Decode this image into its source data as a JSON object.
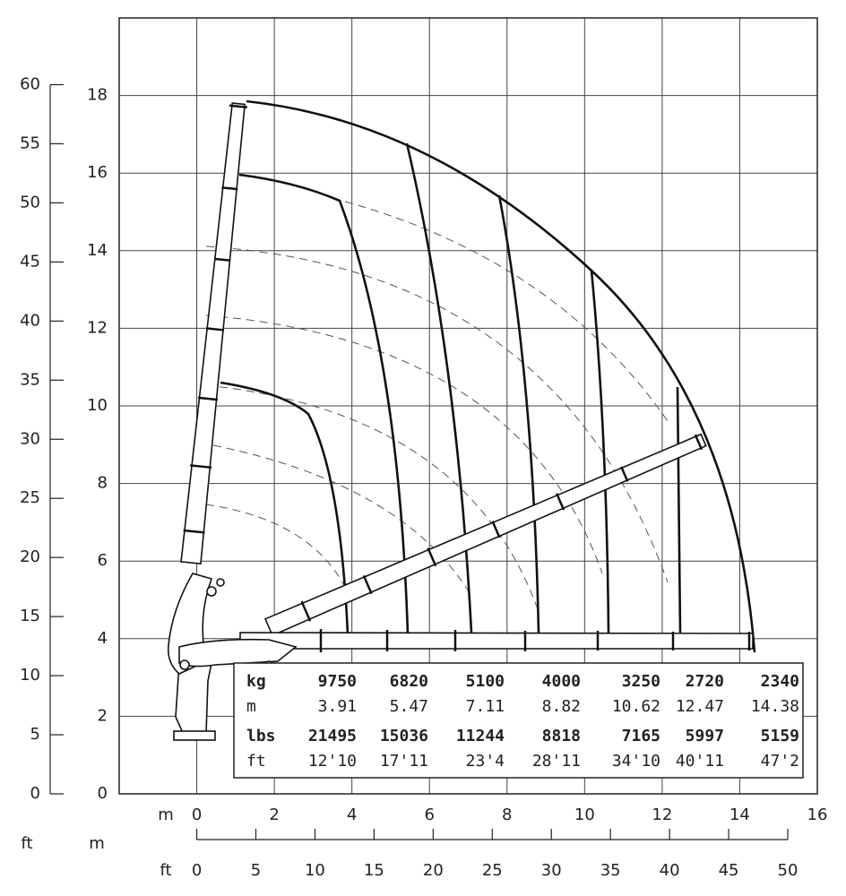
{
  "chart_data": {
    "type": "crane",
    "xlim": [
      -2,
      16
    ],
    "xticks": [
      0,
      2,
      4,
      6,
      8,
      10,
      12,
      14,
      16
    ],
    "ylim": [
      0,
      20
    ],
    "yticks": [
      0,
      2,
      4,
      6,
      8,
      10,
      12,
      14,
      16,
      18
    ],
    "grid_lines_x": [
      -2,
      0,
      2,
      4,
      6,
      8,
      10,
      12,
      14,
      16
    ],
    "x_unit": "m",
    "y_unit": "m",
    "y2_unit": "ft",
    "x2_unit": "ft",
    "y2lim": [
      0,
      60
    ],
    "y2ticks": [
      0,
      5,
      10,
      15,
      20,
      25,
      30,
      35,
      40,
      45,
      50,
      55,
      60
    ],
    "x2lim": [
      0,
      50
    ],
    "x2ticks": [
      0,
      5,
      10,
      15,
      20,
      25,
      30,
      35,
      40,
      45,
      50
    ],
    "load_table": {
      "rows": [
        {
          "label": "kg",
          "values": [
            9750,
            6820,
            5100,
            4000,
            3250,
            2720,
            2340
          ]
        },
        {
          "label": "m",
          "values": [
            3.91,
            5.47,
            7.11,
            8.82,
            10.62,
            12.47,
            14.38
          ]
        },
        {
          "label": "lbs",
          "values": [
            21495,
            15036,
            11244,
            8818,
            7165,
            5997,
            5159
          ]
        },
        {
          "label": "ft",
          "values": [
            "12'10",
            "17'11",
            "23'4",
            "28'11",
            "34'10",
            "40'11",
            "47'2"
          ]
        }
      ]
    }
  }
}
